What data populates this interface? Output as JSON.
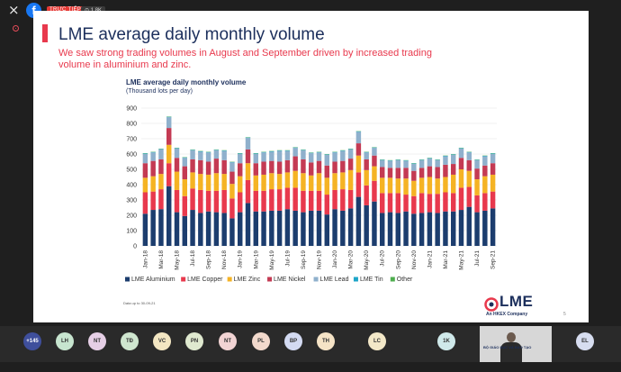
{
  "topbar": {
    "close_icon": "×",
    "app_icon": "facebook-icon",
    "live_label": "TRỰC TIẾP",
    "viewers": "⊙ 1,8K"
  },
  "slide": {
    "title": "LME average daily monthly volume",
    "subtitle": "We saw strong trading volumes in August and September driven by increased trading volume in aluminium and zinc.",
    "source_note": "Data up to 30-09-21",
    "logo_text": "LME",
    "logo_tagline": "An HKEX Company",
    "page_number": "5"
  },
  "chart_data": {
    "type": "bar",
    "stacked": true,
    "title": "LME average daily monthly volume",
    "subtitle": "(Thousand lots per day)",
    "ylim": [
      0,
      900
    ],
    "yticks": [
      0,
      100,
      200,
      300,
      400,
      500,
      600,
      700,
      800,
      900
    ],
    "grid": true,
    "legend_position": "bottom",
    "categories": [
      "Jan-18",
      "Feb-18",
      "Mar-18",
      "Apr-18",
      "May-18",
      "Jun-18",
      "Jul-18",
      "Aug-18",
      "Sep-18",
      "Oct-18",
      "Nov-18",
      "Dec-18",
      "Jan-19",
      "Feb-19",
      "Mar-19",
      "Apr-19",
      "May-19",
      "Jun-19",
      "Jul-19",
      "Aug-19",
      "Sep-19",
      "Oct-19",
      "Nov-19",
      "Dec-19",
      "Jan-20",
      "Feb-20",
      "Mar-20",
      "Apr-20",
      "May-20",
      "Jun-20",
      "Jul-20",
      "Aug-20",
      "Sep-20",
      "Oct-20",
      "Nov-20",
      "Dec-20",
      "Jan-21",
      "Feb-21",
      "Mar-21",
      "Apr-21",
      "May-21",
      "Jun-21",
      "Jul-21",
      "Aug-21",
      "Sep-21"
    ],
    "xticks": [
      "Jan-18",
      "Mar-18",
      "May-18",
      "Jul-18",
      "Sep-18",
      "Nov-18",
      "Jan-19",
      "Mar-19",
      "May-19",
      "Jul-19",
      "Sep-19",
      "Nov-19",
      "Jan-20",
      "Mar-20",
      "May-20",
      "Jul-20",
      "Sep-20",
      "Nov-20",
      "Jan-21",
      "Mar-21",
      "May-21",
      "Jul-21",
      "Sep-21"
    ],
    "series": [
      {
        "name": "LME Aluminium",
        "color": "#1c3d6e",
        "values": [
          210,
          235,
          240,
          390,
          220,
          195,
          235,
          215,
          225,
          220,
          215,
          180,
          220,
          280,
          225,
          225,
          230,
          230,
          240,
          230,
          220,
          230,
          230,
          205,
          240,
          230,
          245,
          320,
          265,
          290,
          215,
          220,
          215,
          225,
          210,
          215,
          220,
          215,
          225,
          225,
          235,
          255,
          220,
          230,
          245
        ]
      },
      {
        "name": "LME Copper",
        "color": "#e8394d",
        "values": [
          140,
          120,
          130,
          150,
          145,
          130,
          140,
          150,
          135,
          140,
          150,
          130,
          130,
          150,
          135,
          135,
          140,
          140,
          140,
          150,
          140,
          130,
          130,
          130,
          125,
          140,
          120,
          160,
          130,
          135,
          130,
          125,
          130,
          110,
          115,
          130,
          120,
          125,
          125,
          120,
          145,
          130,
          110,
          115,
          110
        ]
      },
      {
        "name": "LME Zinc",
        "color": "#f5b324",
        "values": [
          95,
          100,
          100,
          120,
          120,
          110,
          105,
          105,
          105,
          115,
          105,
          95,
          105,
          110,
          100,
          105,
          105,
          100,
          100,
          110,
          115,
          100,
          115,
          110,
          110,
          110,
          130,
          110,
          100,
          95,
          100,
          100,
          95,
          105,
          100,
          100,
          110,
          100,
          100,
          120,
          120,
          105,
          105,
          110,
          110
        ]
      },
      {
        "name": "LME Nickel",
        "color": "#c43a53",
        "values": [
          95,
          100,
          95,
          110,
          90,
          85,
          85,
          90,
          85,
          95,
          90,
          80,
          85,
          90,
          80,
          85,
          80,
          80,
          80,
          95,
          90,
          85,
          80,
          80,
          75,
          75,
          75,
          80,
          70,
          70,
          70,
          65,
          70,
          70,
          65,
          65,
          70,
          75,
          80,
          70,
          75,
          70,
          70,
          70,
          75
        ]
      },
      {
        "name": "LME Lead",
        "color": "#8fb0cc",
        "values": [
          60,
          55,
          65,
          70,
          60,
          55,
          60,
          55,
          60,
          55,
          60,
          60,
          60,
          75,
          60,
          60,
          60,
          70,
          60,
          55,
          60,
          60,
          55,
          70,
          60,
          65,
          60,
          75,
          45,
          50,
          45,
          45,
          50,
          45,
          45,
          50,
          50,
          45,
          55,
          60,
          60,
          50,
          55,
          60,
          60
        ]
      },
      {
        "name": "LME Tin",
        "color": "#1ea5c8",
        "values": [
          3,
          3,
          3,
          3,
          3,
          3,
          3,
          3,
          3,
          3,
          3,
          3,
          3,
          3,
          3,
          3,
          3,
          3,
          3,
          3,
          3,
          3,
          3,
          3,
          3,
          3,
          3,
          3,
          3,
          3,
          3,
          3,
          3,
          3,
          3,
          3,
          3,
          3,
          3,
          3,
          3,
          3,
          3,
          3,
          3
        ]
      },
      {
        "name": "Other",
        "color": "#4fae4f",
        "values": [
          2,
          2,
          2,
          2,
          2,
          2,
          2,
          2,
          2,
          2,
          2,
          2,
          2,
          2,
          2,
          2,
          2,
          2,
          2,
          2,
          2,
          2,
          2,
          2,
          2,
          2,
          2,
          2,
          2,
          2,
          2,
          2,
          2,
          2,
          2,
          2,
          2,
          2,
          2,
          2,
          2,
          2,
          2,
          2,
          2
        ]
      }
    ]
  },
  "participants": [
    {
      "initials": "+145",
      "color": "#3f4f9c",
      "is_count": true
    },
    {
      "initials": "LH",
      "color": "#c7e5cf"
    },
    {
      "initials": "NT",
      "color": "#e6cfe6"
    },
    {
      "initials": "TĐ",
      "color": "#cfe6cf"
    },
    {
      "initials": "VC",
      "color": "#f3e6c2"
    },
    {
      "initials": "PN",
      "color": "#dfe9cf"
    },
    {
      "initials": "NT",
      "color": "#f2d4d4"
    },
    {
      "initials": "PL",
      "color": "#f2d9cc"
    },
    {
      "initials": "BP",
      "color": "#d3daf2"
    },
    {
      "initials": "TH",
      "color": "#f5e3c6"
    },
    {
      "initials": "LC",
      "color": "#f3e8c8"
    },
    {
      "initials": "1K",
      "color": "#cfe9ea"
    },
    {
      "initials": "EL",
      "color": "#d7ddf0"
    }
  ],
  "self_view": {
    "caption": "BỘ GIÁO DỤC VÀ ĐÀO TẠO"
  }
}
